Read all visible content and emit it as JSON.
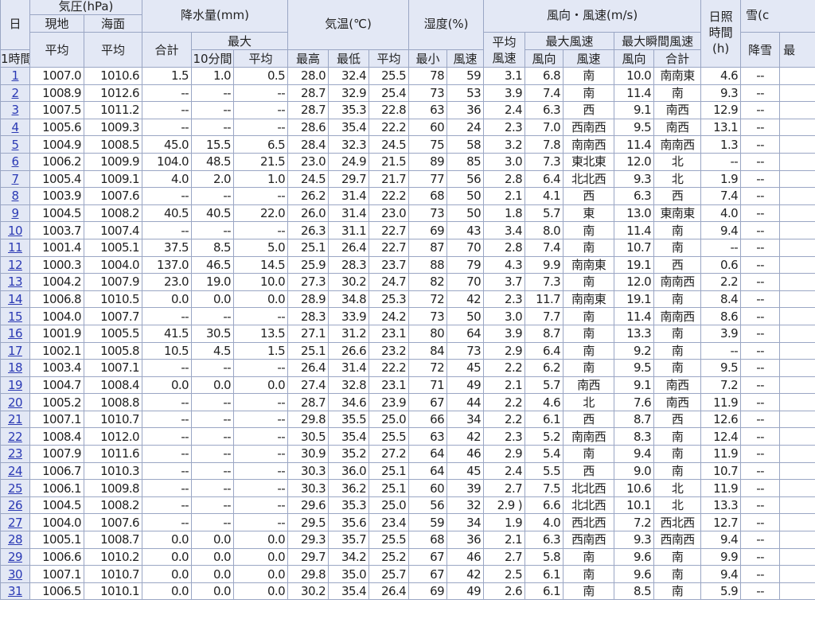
{
  "headers": {
    "day": "日",
    "pressure": "気圧(hPa)",
    "pressure_station": "現地",
    "pressure_sea": "海面",
    "avg": "平均",
    "precip": "降水量(mm)",
    "precip_total": "合計",
    "precip_max": "最大",
    "precip_1h": "1時間",
    "precip_10m": "10分間",
    "temp": "気温(℃)",
    "temp_avg": "平均",
    "temp_max": "最高",
    "temp_min": "最低",
    "humidity": "湿度(%)",
    "hum_avg": "平均",
    "hum_min": "最小",
    "wind": "風向・風速(m/s)",
    "wind_avg": "平均",
    "wind_avg2": "風速",
    "wind_max": "最大風速",
    "wind_gust": "最大瞬間風速",
    "speed": "風速",
    "direction": "風向",
    "sunshine_1": "日照",
    "sunshine_2": "時間",
    "sunshine_unit": "(h)",
    "snow": "雪(c",
    "snowfall": "降雪",
    "snow_total": "合計",
    "snow_next": "最"
  },
  "rows": [
    [
      "1",
      "1007.0",
      "1010.6",
      "1.5",
      "1.0",
      "0.5",
      "28.0",
      "32.4",
      "25.5",
      "78",
      "59",
      "3.1",
      "6.8",
      "南",
      "10.0",
      "南南東",
      "4.6",
      "--"
    ],
    [
      "2",
      "1008.9",
      "1012.6",
      "--",
      "--",
      "--",
      "28.7",
      "32.9",
      "25.4",
      "73",
      "53",
      "3.9",
      "7.4",
      "南",
      "11.4",
      "南",
      "9.3",
      "--"
    ],
    [
      "3",
      "1007.5",
      "1011.2",
      "--",
      "--",
      "--",
      "28.7",
      "35.3",
      "22.8",
      "63",
      "36",
      "2.4",
      "6.3",
      "西",
      "9.1",
      "南西",
      "12.9",
      "--"
    ],
    [
      "4",
      "1005.6",
      "1009.3",
      "--",
      "--",
      "--",
      "28.6",
      "35.4",
      "22.2",
      "60",
      "24",
      "2.3",
      "7.0",
      "西南西",
      "9.5",
      "南西",
      "13.1",
      "--"
    ],
    [
      "5",
      "1004.9",
      "1008.5",
      "45.0",
      "15.5",
      "6.5",
      "28.4",
      "32.3",
      "24.5",
      "75",
      "58",
      "3.2",
      "7.8",
      "南南西",
      "11.4",
      "南南西",
      "1.3",
      "--"
    ],
    [
      "6",
      "1006.2",
      "1009.9",
      "104.0",
      "48.5",
      "21.5",
      "23.0",
      "24.9",
      "21.5",
      "89",
      "85",
      "3.0",
      "7.3",
      "東北東",
      "12.0",
      "北",
      "--",
      "--"
    ],
    [
      "7",
      "1005.4",
      "1009.1",
      "4.0",
      "2.0",
      "1.0",
      "24.5",
      "29.7",
      "21.7",
      "77",
      "56",
      "2.8",
      "6.4",
      "北北西",
      "9.3",
      "北",
      "1.9",
      "--"
    ],
    [
      "8",
      "1003.9",
      "1007.6",
      "--",
      "--",
      "--",
      "26.2",
      "31.4",
      "22.2",
      "68",
      "50",
      "2.1",
      "4.1",
      "西",
      "6.3",
      "西",
      "7.4",
      "--"
    ],
    [
      "9",
      "1004.5",
      "1008.2",
      "40.5",
      "40.5",
      "22.0",
      "26.0",
      "31.4",
      "23.0",
      "73",
      "50",
      "1.8",
      "5.7",
      "東",
      "13.0",
      "東南東",
      "4.0",
      "--"
    ],
    [
      "10",
      "1003.7",
      "1007.4",
      "--",
      "--",
      "--",
      "26.3",
      "31.1",
      "22.7",
      "69",
      "43",
      "3.4",
      "8.0",
      "南",
      "11.4",
      "南",
      "9.4",
      "--"
    ],
    [
      "11",
      "1001.4",
      "1005.1",
      "37.5",
      "8.5",
      "5.0",
      "25.1",
      "26.4",
      "22.7",
      "87",
      "70",
      "2.8",
      "7.4",
      "南",
      "10.7",
      "南",
      "--",
      "--"
    ],
    [
      "12",
      "1000.3",
      "1004.0",
      "137.0",
      "46.5",
      "14.5",
      "25.9",
      "28.3",
      "23.7",
      "88",
      "79",
      "4.3",
      "9.9",
      "南南東",
      "19.1",
      "西",
      "0.6",
      "--"
    ],
    [
      "13",
      "1004.2",
      "1007.9",
      "23.0",
      "19.0",
      "10.0",
      "27.3",
      "30.2",
      "24.7",
      "82",
      "70",
      "3.7",
      "7.3",
      "南",
      "12.0",
      "南南西",
      "2.2",
      "--"
    ],
    [
      "14",
      "1006.8",
      "1010.5",
      "0.0",
      "0.0",
      "0.0",
      "28.9",
      "34.8",
      "25.3",
      "72",
      "42",
      "2.3",
      "11.7",
      "南南東",
      "19.1",
      "南",
      "8.4",
      "--"
    ],
    [
      "15",
      "1004.0",
      "1007.7",
      "--",
      "--",
      "--",
      "28.3",
      "33.9",
      "24.2",
      "73",
      "50",
      "3.0",
      "7.7",
      "南",
      "11.4",
      "南南西",
      "8.6",
      "--"
    ],
    [
      "16",
      "1001.9",
      "1005.5",
      "41.5",
      "30.5",
      "13.5",
      "27.1",
      "31.2",
      "23.1",
      "80",
      "64",
      "3.9",
      "8.7",
      "南",
      "13.3",
      "南",
      "3.9",
      "--"
    ],
    [
      "17",
      "1002.1",
      "1005.8",
      "10.5",
      "4.5",
      "1.5",
      "25.1",
      "26.6",
      "23.2",
      "84",
      "73",
      "2.9",
      "6.4",
      "南",
      "9.2",
      "南",
      "--",
      "--"
    ],
    [
      "18",
      "1003.4",
      "1007.1",
      "--",
      "--",
      "--",
      "26.4",
      "31.4",
      "22.2",
      "72",
      "45",
      "2.2",
      "6.2",
      "南",
      "9.5",
      "南",
      "9.5",
      "--"
    ],
    [
      "19",
      "1004.7",
      "1008.4",
      "0.0",
      "0.0",
      "0.0",
      "27.4",
      "32.8",
      "23.1",
      "71",
      "49",
      "2.1",
      "5.7",
      "南西",
      "9.1",
      "南西",
      "7.2",
      "--"
    ],
    [
      "20",
      "1005.2",
      "1008.8",
      "--",
      "--",
      "--",
      "28.7",
      "34.6",
      "23.9",
      "67",
      "44",
      "2.2",
      "4.6",
      "北",
      "7.6",
      "南西",
      "11.9",
      "--"
    ],
    [
      "21",
      "1007.1",
      "1010.7",
      "--",
      "--",
      "--",
      "29.8",
      "35.5",
      "25.0",
      "66",
      "34",
      "2.2",
      "6.1",
      "西",
      "8.7",
      "西",
      "12.6",
      "--"
    ],
    [
      "22",
      "1008.4",
      "1012.0",
      "--",
      "--",
      "--",
      "30.5",
      "35.4",
      "25.5",
      "63",
      "42",
      "2.3",
      "5.2",
      "南南西",
      "8.3",
      "南",
      "12.4",
      "--"
    ],
    [
      "23",
      "1007.9",
      "1011.6",
      "--",
      "--",
      "--",
      "30.9",
      "35.2",
      "27.2",
      "64",
      "46",
      "2.9",
      "5.4",
      "南",
      "9.4",
      "南",
      "11.9",
      "--"
    ],
    [
      "24",
      "1006.7",
      "1010.3",
      "--",
      "--",
      "--",
      "30.3",
      "36.0",
      "25.1",
      "64",
      "45",
      "2.4",
      "5.5",
      "西",
      "9.0",
      "南",
      "10.7",
      "--"
    ],
    [
      "25",
      "1006.1",
      "1009.8",
      "--",
      "--",
      "--",
      "30.3",
      "36.2",
      "25.1",
      "60",
      "39",
      "2.7",
      "7.5",
      "北北西",
      "10.6",
      "北",
      "11.9",
      "--"
    ],
    [
      "26",
      "1004.5",
      "1008.2",
      "--",
      "--",
      "--",
      "29.6",
      "35.3",
      "25.0",
      "56",
      "32",
      "2.9 )",
      "6.6",
      "北北西",
      "10.1",
      "北",
      "13.3",
      "--"
    ],
    [
      "27",
      "1004.0",
      "1007.6",
      "--",
      "--",
      "--",
      "29.5",
      "35.6",
      "23.4",
      "59",
      "34",
      "1.9",
      "4.0",
      "西北西",
      "7.2",
      "西北西",
      "12.7",
      "--"
    ],
    [
      "28",
      "1005.1",
      "1008.7",
      "0.0",
      "0.0",
      "0.0",
      "29.3",
      "35.7",
      "25.5",
      "68",
      "36",
      "2.1",
      "6.3",
      "西南西",
      "9.3",
      "西南西",
      "9.4",
      "--"
    ],
    [
      "29",
      "1006.6",
      "1010.2",
      "0.0",
      "0.0",
      "0.0",
      "29.7",
      "34.2",
      "25.2",
      "67",
      "46",
      "2.7",
      "5.8",
      "南",
      "9.6",
      "南",
      "9.9",
      "--"
    ],
    [
      "30",
      "1007.1",
      "1010.7",
      "0.0",
      "0.0",
      "0.0",
      "29.8",
      "35.0",
      "25.7",
      "67",
      "42",
      "2.5",
      "6.1",
      "南",
      "9.6",
      "南",
      "9.4",
      "--"
    ],
    [
      "31",
      "1006.5",
      "1010.1",
      "0.0",
      "0.0",
      "0.0",
      "30.2",
      "35.4",
      "26.4",
      "69",
      "49",
      "2.6",
      "6.1",
      "南",
      "8.5",
      "南",
      "5.9",
      "--"
    ]
  ]
}
